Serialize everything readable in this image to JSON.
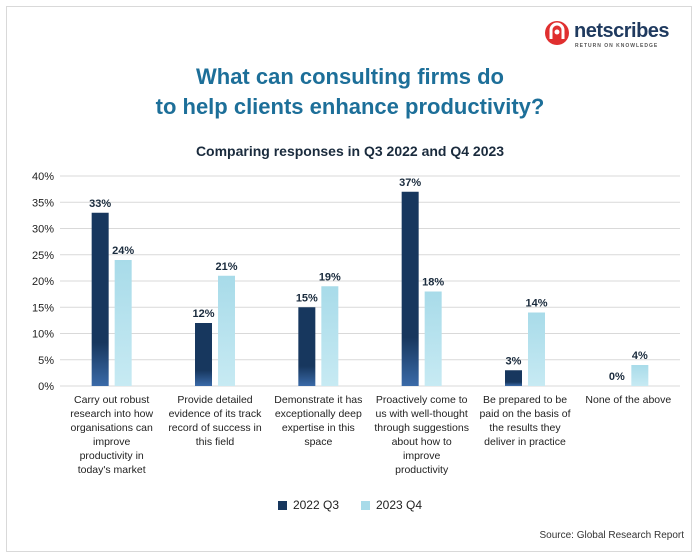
{
  "brand": {
    "name": "netscribes",
    "tagline": "RETURN ON KNOWLEDGE",
    "logo_color": "#e02f2f"
  },
  "title_line1": "What can consulting firms do",
  "title_line2": "to help clients enhance productivity?",
  "source": "Source: Global Research Report",
  "colors": {
    "title": "#1d6f99",
    "series_q3": "#17375e",
    "series_q4": "#a8dbe9",
    "grid": "#d9d9d9"
  },
  "chart_data": {
    "type": "bar",
    "title": "Comparing responses in Q3 2022 and Q4 2023",
    "xlabel": "",
    "ylabel": "",
    "ylim": [
      0,
      40
    ],
    "yticks": [
      "0%",
      "5%",
      "10%",
      "15%",
      "20%",
      "25%",
      "30%",
      "35%",
      "40%"
    ],
    "grid": true,
    "legend_position": "bottom",
    "categories": [
      [
        "Carry out robust",
        "research into how",
        "organisations can",
        "improve",
        "productivity in",
        "today's market"
      ],
      [
        "Provide detailed",
        "evidence of its track",
        "record of success in",
        "this field"
      ],
      [
        "Demonstrate it has",
        "exceptionally deep",
        "expertise in this",
        "space"
      ],
      [
        "Proactively come to",
        "us with well-thought",
        "through suggestions",
        "about how to",
        "improve",
        "productivity"
      ],
      [
        "Be prepared to be",
        "paid on the basis of",
        "the results they",
        "deliver in practice"
      ],
      [
        "None of the above"
      ]
    ],
    "series": [
      {
        "name": "2022 Q3",
        "values": [
          33,
          12,
          15,
          37,
          3,
          0
        ],
        "labels": [
          "33%",
          "12%",
          "15%",
          "37%",
          "3%",
          "0%"
        ]
      },
      {
        "name": "2023 Q4",
        "values": [
          24,
          21,
          19,
          18,
          14,
          4
        ],
        "labels": [
          "24%",
          "21%",
          "19%",
          "18%",
          "14%",
          "4%"
        ]
      }
    ]
  }
}
